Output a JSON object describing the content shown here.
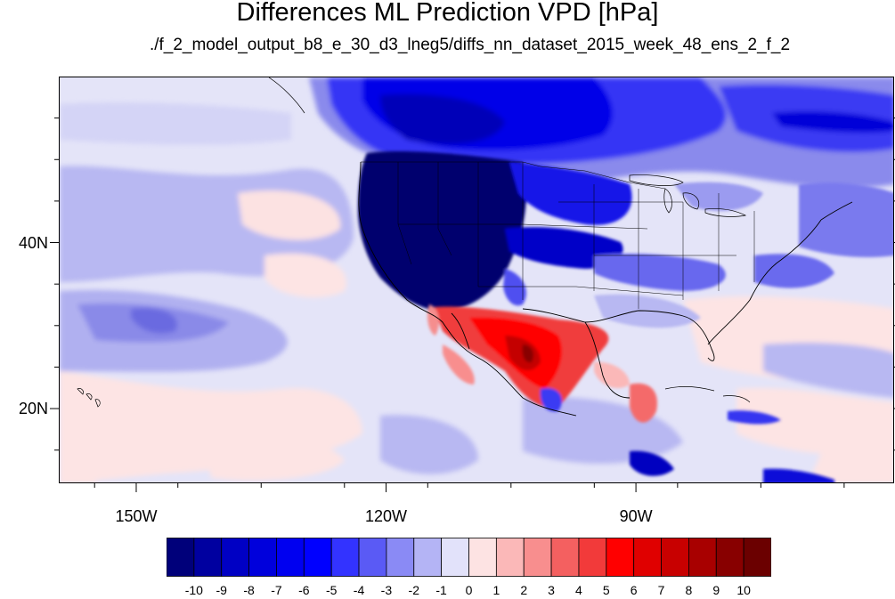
{
  "title": "Differences ML Prediction VPD [hPa]",
  "subtitle": "./f_2_model_output_b8_e_30_d3_lneg5/diffs_nn_dataset_2015_week_48_ens_2_f_2",
  "map": {
    "lat_labels": [
      {
        "text": "40N",
        "lat": 40
      },
      {
        "text": "20N",
        "lat": 20
      }
    ],
    "lon_labels": [
      {
        "text": "150W",
        "lon": -150
      },
      {
        "text": "120W",
        "lon": -120
      },
      {
        "text": "90W",
        "lon": -90
      }
    ],
    "extent": {
      "lon_min": -159.3,
      "lon_max": -59,
      "lat_min": 11,
      "lat_max": 60
    }
  },
  "colorbar": {
    "labels": [
      "-10",
      "-9",
      "-8",
      "-7",
      "-6",
      "-5",
      "-4",
      "-3",
      "-2",
      "-1",
      "0",
      "1",
      "2",
      "3",
      "4",
      "5",
      "6",
      "7",
      "8",
      "9",
      "10"
    ],
    "colors": [
      "#00007a",
      "#0000a0",
      "#0000c4",
      "#0000dc",
      "#0000f0",
      "#0000ff",
      "#3333ff",
      "#5a5af5",
      "#8a8af5",
      "#b4b4f5",
      "#e2e2fa",
      "#fde3e3",
      "#fbb8b8",
      "#f88e8e",
      "#f46060",
      "#f23a3a",
      "#ff0000",
      "#e00000",
      "#c80000",
      "#a80000",
      "#880000",
      "#6b0000"
    ]
  }
}
